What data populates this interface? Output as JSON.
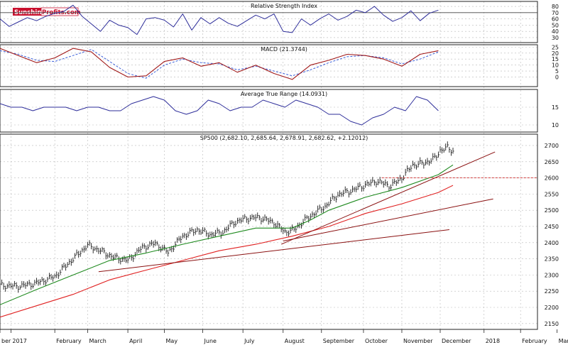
{
  "brand": {
    "name_part1": "Sunshine",
    "name_part2": "Profits.com"
  },
  "colors": {
    "price_bar": "#1a1a1a",
    "indicator_line": "#2e2e9a",
    "macd_signal": "#3a5fd9",
    "macd_line": "#a01818",
    "sma_green": "#1f8a1f",
    "sma_red": "#e02020",
    "trend_dark_red": "#8a1010",
    "resistance_dashed": "#cc2222",
    "grid": "#b8b8b8"
  },
  "chart_data": [
    {
      "type": "line",
      "title": "Relative Strength Index",
      "ylim": [
        22,
        88
      ],
      "yticks": [
        30,
        40,
        50,
        60,
        70,
        80
      ],
      "yticks_labels": [
        "30",
        "40",
        "50",
        "60",
        "70",
        "80"
      ],
      "reference_line": 70,
      "grid": true,
      "series": [
        {
          "x": [
            0,
            5,
            10,
            15,
            20,
            25,
            30,
            35,
            40,
            45,
            50,
            55,
            60,
            65,
            70,
            75,
            80,
            85,
            90,
            95,
            100,
            105,
            110,
            115,
            120,
            125,
            130,
            135,
            140,
            145,
            150,
            155,
            160,
            165,
            170,
            175,
            180,
            185,
            190,
            195,
            200,
            205,
            210,
            215,
            220,
            225,
            230,
            235,
            240
          ],
          "values": [
            60,
            48,
            55,
            62,
            57,
            64,
            69,
            72,
            82,
            64,
            52,
            40,
            58,
            50,
            46,
            35,
            60,
            62,
            58,
            47,
            68,
            42,
            62,
            52,
            62,
            53,
            48,
            57,
            66,
            60,
            68,
            40,
            38,
            60,
            50,
            60,
            68,
            58,
            64,
            74,
            70,
            80,
            66,
            56,
            62,
            73,
            57,
            69,
            74
          ]
        }
      ]
    },
    {
      "type": "line",
      "title": "MACD (21.3744)",
      "ylim": [
        -8,
        27
      ],
      "yticks": [
        0,
        5,
        10,
        15,
        20,
        25
      ],
      "yticks_labels": [
        "0",
        "5",
        "10",
        "15",
        "20",
        "25"
      ],
      "grid": true,
      "series": [
        {
          "values_ref": "macd",
          "x": [
            0,
            10,
            20,
            30,
            40,
            50,
            60,
            70,
            80,
            90,
            100,
            110,
            120,
            130,
            140,
            150,
            160,
            170,
            180,
            190,
            200,
            210,
            220,
            230,
            240
          ],
          "values": [
            24,
            18,
            12,
            16,
            24,
            21,
            8,
            0,
            1,
            13,
            16,
            9,
            12,
            4,
            10,
            3,
            -2,
            10,
            14,
            19,
            18,
            15,
            9,
            19,
            22
          ]
        },
        {
          "values_ref": "signal",
          "x": [
            0,
            10,
            20,
            30,
            40,
            50,
            60,
            70,
            80,
            90,
            100,
            110,
            120,
            130,
            140,
            150,
            160,
            170,
            180,
            190,
            200,
            210,
            220,
            230,
            240
          ],
          "values": [
            22,
            19,
            14,
            13,
            18,
            23,
            13,
            3,
            -1,
            10,
            15,
            12,
            11,
            6,
            9,
            5,
            1,
            6,
            12,
            17,
            18,
            16,
            11,
            15,
            21
          ]
        }
      ]
    },
    {
      "type": "line",
      "title": "Average True Range (14.0931)",
      "ylim": [
        8,
        20
      ],
      "yticks": [
        10,
        15
      ],
      "yticks_labels": [
        "10",
        "15"
      ],
      "grid": true,
      "series": [
        {
          "x": [
            0,
            6,
            12,
            18,
            24,
            30,
            36,
            42,
            48,
            54,
            60,
            66,
            72,
            78,
            84,
            90,
            96,
            102,
            108,
            114,
            120,
            126,
            132,
            138,
            144,
            150,
            156,
            162,
            168,
            174,
            180,
            186,
            192,
            198,
            204,
            210,
            216,
            222,
            228,
            234,
            240
          ],
          "values": [
            16,
            15,
            15,
            14,
            15,
            15,
            15,
            14,
            15,
            15,
            14,
            14,
            16,
            17,
            18,
            17,
            14,
            13,
            14,
            17,
            16,
            14,
            15,
            15,
            17,
            16,
            15,
            17,
            16,
            15,
            13,
            13,
            11,
            10,
            12,
            13,
            15,
            14,
            18,
            17,
            14
          ]
        }
      ]
    },
    {
      "type": "line",
      "title": "SP500 (2,682.10, 2,685.64, 2,678.91, 2,682.62, +2.12012)",
      "ylim": [
        2132,
        2735
      ],
      "yticks": [
        2150,
        2200,
        2250,
        2300,
        2350,
        2400,
        2450,
        2500,
        2550,
        2600,
        2650,
        2700
      ],
      "yticks_labels": [
        "2150",
        "2200",
        "2250",
        "2300",
        "2350",
        "2400",
        "2450",
        "2500",
        "2550",
        "2600",
        "2650",
        "2700"
      ],
      "grid": true,
      "x_month_labels": [
        "ber",
        "2017",
        "February",
        "March",
        "April",
        "May",
        "June",
        "July",
        "August",
        "September",
        "October",
        "November",
        "December",
        "2018",
        "February",
        "Mar"
      ],
      "x_month_positions": [
        0,
        6,
        30,
        48,
        70,
        90,
        111,
        133,
        155,
        176,
        199,
        220,
        241,
        265,
        285,
        305
      ],
      "price_points": {
        "x": [
          0,
          10,
          20,
          30,
          40,
          48,
          55,
          62,
          70,
          78,
          85,
          92,
          100,
          108,
          115,
          122,
          128,
          135,
          142,
          150,
          156,
          161,
          166,
          172,
          178,
          185,
          192,
          200,
          206,
          214,
          220,
          226,
          232,
          238,
          241,
          245,
          248
        ],
        "values": [
          2268,
          2265,
          2275,
          2295,
          2350,
          2392,
          2375,
          2355,
          2345,
          2385,
          2398,
          2370,
          2420,
          2440,
          2425,
          2432,
          2462,
          2475,
          2478,
          2462,
          2433,
          2440,
          2465,
          2490,
          2512,
          2548,
          2560,
          2578,
          2590,
          2575,
          2600,
          2640,
          2645,
          2660,
          2685,
          2693,
          2683
        ]
      },
      "series": [
        {
          "values_ref": "sma_short",
          "x": [
            0,
            20,
            40,
            60,
            80,
            100,
            120,
            140,
            160,
            170,
            180,
            200,
            220,
            240,
            248
          ],
          "values": [
            2208,
            2255,
            2300,
            2345,
            2368,
            2395,
            2420,
            2445,
            2445,
            2470,
            2500,
            2540,
            2570,
            2610,
            2640
          ]
        },
        {
          "values_ref": "sma_long",
          "x": [
            0,
            20,
            40,
            60,
            80,
            100,
            120,
            140,
            160,
            180,
            200,
            220,
            240,
            248
          ],
          "values": [
            2170,
            2205,
            2240,
            2285,
            2315,
            2345,
            2375,
            2395,
            2420,
            2450,
            2490,
            2520,
            2555,
            2577
          ]
        },
        {
          "values_ref": "trend_1",
          "x": [
            54,
            246
          ],
          "values": [
            2310,
            2440
          ]
        },
        {
          "values_ref": "trend_2",
          "x": [
            155,
            270
          ],
          "values": [
            2405,
            2535
          ]
        },
        {
          "values_ref": "trend_3",
          "x": [
            154,
            271
          ],
          "values": [
            2395,
            2680
          ]
        }
      ],
      "resistance_level": 2600
    }
  ]
}
